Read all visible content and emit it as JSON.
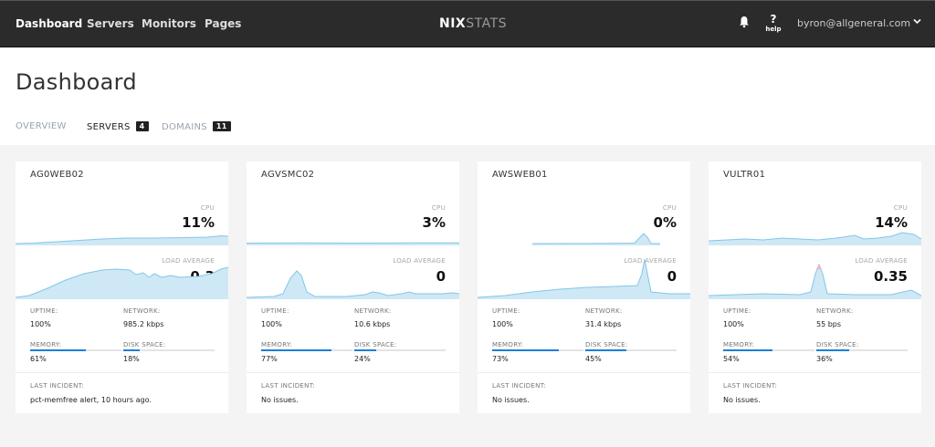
{
  "nav": {
    "items": [
      "Dashboard",
      "Servers",
      "Monitors",
      "Pages"
    ],
    "brand_bold": "NIX",
    "brand_light": "STATS",
    "help_icon": "?",
    "help_label": "help",
    "user": "byron@allgeneral.com"
  },
  "page": {
    "title": "Dashboard",
    "tabs": [
      {
        "label": "OVERVIEW"
      },
      {
        "label": "SERVERS",
        "count": "4"
      },
      {
        "label": "DOMAINS",
        "count": "11"
      }
    ]
  },
  "colors": {
    "graph_fill": "#cfe8f5",
    "graph_line": "#82c6ea",
    "bar_fill": "#1e7ed8",
    "nav_bg": "#2b2b2b"
  },
  "labels": {
    "cpu": "CPU",
    "load": "LOAD AVERAGE",
    "uptime": "UPTIME:",
    "network": "NETWORK:",
    "memory": "MEMORY:",
    "disk": "DISK SPACE:",
    "incident": "LAST INCIDENT:"
  },
  "servers": [
    {
      "name": "AG0WEB02",
      "cpu": "11%",
      "load": "0.3",
      "uptime": "100%",
      "network": "985.2 kbps",
      "memory": "61%",
      "memory_fraction": 0.61,
      "disk": "18%",
      "disk_fraction": 0.18,
      "incident": "pct-memfree alert, 10 hours ago."
    },
    {
      "name": "AGVSMC02",
      "cpu": "3%",
      "load": "0",
      "uptime": "100%",
      "network": "10.6 kbps",
      "memory": "77%",
      "memory_fraction": 0.77,
      "disk": "24%",
      "disk_fraction": 0.24,
      "incident": "No issues."
    },
    {
      "name": "AWSWEB01",
      "cpu": "0%",
      "load": "0",
      "uptime": "100%",
      "network": "31.4 kbps",
      "memory": "73%",
      "memory_fraction": 0.73,
      "disk": "45%",
      "disk_fraction": 0.45,
      "incident": "No issues."
    },
    {
      "name": "VULTR01",
      "cpu": "14%",
      "load": "0.35",
      "uptime": "100%",
      "network": "55 bps",
      "memory": "54%",
      "memory_fraction": 0.54,
      "disk": "36%",
      "disk_fraction": 0.36,
      "incident": "No issues."
    }
  ]
}
